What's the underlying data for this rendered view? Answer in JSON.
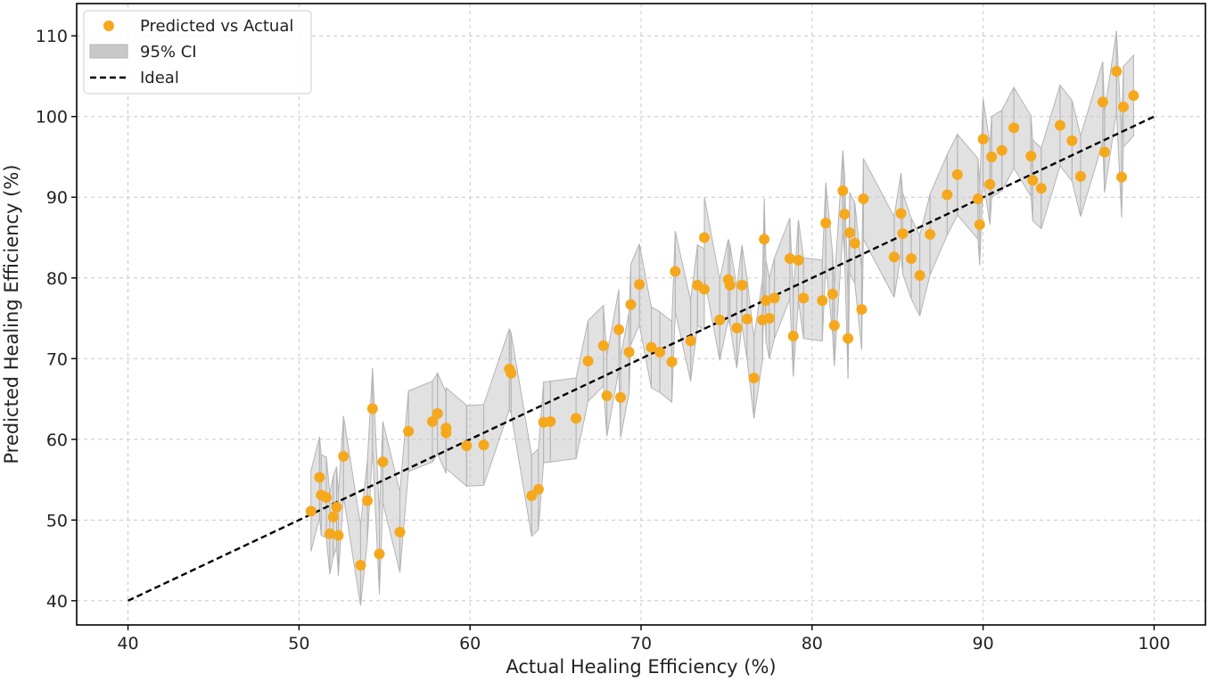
{
  "chart_data": {
    "type": "scatter",
    "xlabel": "Actual Healing Efficiency (%)",
    "ylabel": "Predicted Healing Efficiency (%)",
    "xlim": [
      37,
      103
    ],
    "ylim": [
      37,
      114
    ],
    "xticks": [
      40,
      50,
      60,
      70,
      80,
      90,
      100
    ],
    "yticks": [
      40,
      50,
      60,
      70,
      80,
      90,
      100,
      110
    ],
    "grid": true,
    "legend_position": "top-left",
    "legend": [
      {
        "label": "Predicted vs Actual",
        "kind": "marker"
      },
      {
        "label": "95% CI",
        "kind": "patch"
      },
      {
        "label": "Ideal",
        "kind": "dashed-line"
      }
    ],
    "colors": {
      "points": "#f5a81c",
      "ci": "#c8c8c8",
      "ci_edge": "#b4b4b4",
      "ideal": "#000000",
      "grid": "#c8c8c8",
      "axis": "#000000"
    },
    "ci_half_width": 5,
    "ideal": {
      "x": [
        40,
        100
      ],
      "y": [
        40,
        100
      ]
    },
    "points": [
      [
        50.7,
        51.1
      ],
      [
        51.2,
        55.3
      ],
      [
        51.3,
        53.1
      ],
      [
        51.6,
        52.8
      ],
      [
        51.8,
        48.3
      ],
      [
        52.0,
        50.4
      ],
      [
        52.2,
        51.6
      ],
      [
        52.3,
        48.1
      ],
      [
        52.6,
        57.9
      ],
      [
        53.6,
        44.4
      ],
      [
        54.0,
        52.4
      ],
      [
        54.3,
        63.8
      ],
      [
        54.7,
        45.8
      ],
      [
        54.9,
        57.2
      ],
      [
        55.9,
        48.5
      ],
      [
        56.4,
        61.0
      ],
      [
        57.8,
        62.2
      ],
      [
        58.1,
        63.2
      ],
      [
        58.6,
        60.8
      ],
      [
        58.6,
        61.4
      ],
      [
        59.8,
        59.2
      ],
      [
        60.8,
        59.3
      ],
      [
        62.3,
        68.7
      ],
      [
        62.4,
        68.2
      ],
      [
        63.6,
        53.0
      ],
      [
        64.0,
        53.8
      ],
      [
        64.3,
        62.1
      ],
      [
        64.7,
        62.2
      ],
      [
        66.2,
        62.6
      ],
      [
        66.9,
        69.7
      ],
      [
        67.8,
        71.6
      ],
      [
        68.0,
        65.4
      ],
      [
        68.7,
        73.6
      ],
      [
        68.8,
        65.2
      ],
      [
        69.3,
        70.8
      ],
      [
        69.4,
        76.7
      ],
      [
        69.9,
        79.2
      ],
      [
        70.6,
        71.4
      ],
      [
        71.1,
        70.8
      ],
      [
        71.8,
        69.6
      ],
      [
        72.0,
        80.8
      ],
      [
        72.9,
        72.2
      ],
      [
        73.3,
        79.1
      ],
      [
        73.7,
        78.6
      ],
      [
        73.7,
        85.0
      ],
      [
        74.6,
        74.8
      ],
      [
        75.1,
        79.8
      ],
      [
        75.2,
        79.1
      ],
      [
        75.6,
        73.8
      ],
      [
        75.9,
        79.1
      ],
      [
        76.2,
        74.9
      ],
      [
        76.6,
        67.6
      ],
      [
        77.1,
        74.8
      ],
      [
        77.2,
        84.8
      ],
      [
        77.3,
        77.2
      ],
      [
        77.5,
        75.0
      ],
      [
        77.8,
        77.5
      ],
      [
        78.7,
        82.4
      ],
      [
        78.9,
        72.8
      ],
      [
        79.2,
        82.2
      ],
      [
        79.5,
        77.5
      ],
      [
        80.6,
        77.2
      ],
      [
        80.8,
        86.8
      ],
      [
        81.2,
        78.0
      ],
      [
        81.3,
        74.1
      ],
      [
        81.8,
        90.8
      ],
      [
        81.9,
        87.9
      ],
      [
        82.1,
        72.5
      ],
      [
        82.2,
        85.6
      ],
      [
        82.5,
        84.3
      ],
      [
        82.9,
        76.1
      ],
      [
        83.0,
        89.8
      ],
      [
        84.8,
        82.6
      ],
      [
        85.2,
        88.0
      ],
      [
        85.3,
        85.5
      ],
      [
        85.8,
        82.4
      ],
      [
        86.3,
        80.3
      ],
      [
        86.9,
        85.4
      ],
      [
        87.9,
        90.3
      ],
      [
        88.5,
        92.8
      ],
      [
        89.7,
        89.8
      ],
      [
        89.8,
        86.6
      ],
      [
        90.0,
        97.2
      ],
      [
        90.4,
        91.6
      ],
      [
        90.5,
        95.0
      ],
      [
        91.1,
        95.8
      ],
      [
        91.8,
        98.6
      ],
      [
        92.8,
        95.1
      ],
      [
        92.9,
        92.1
      ],
      [
        93.4,
        91.1
      ],
      [
        94.5,
        98.9
      ],
      [
        95.2,
        97.0
      ],
      [
        95.7,
        92.6
      ],
      [
        97.0,
        101.8
      ],
      [
        97.1,
        95.6
      ],
      [
        97.8,
        105.6
      ],
      [
        98.1,
        92.5
      ],
      [
        98.2,
        101.2
      ],
      [
        98.8,
        102.6
      ]
    ]
  }
}
